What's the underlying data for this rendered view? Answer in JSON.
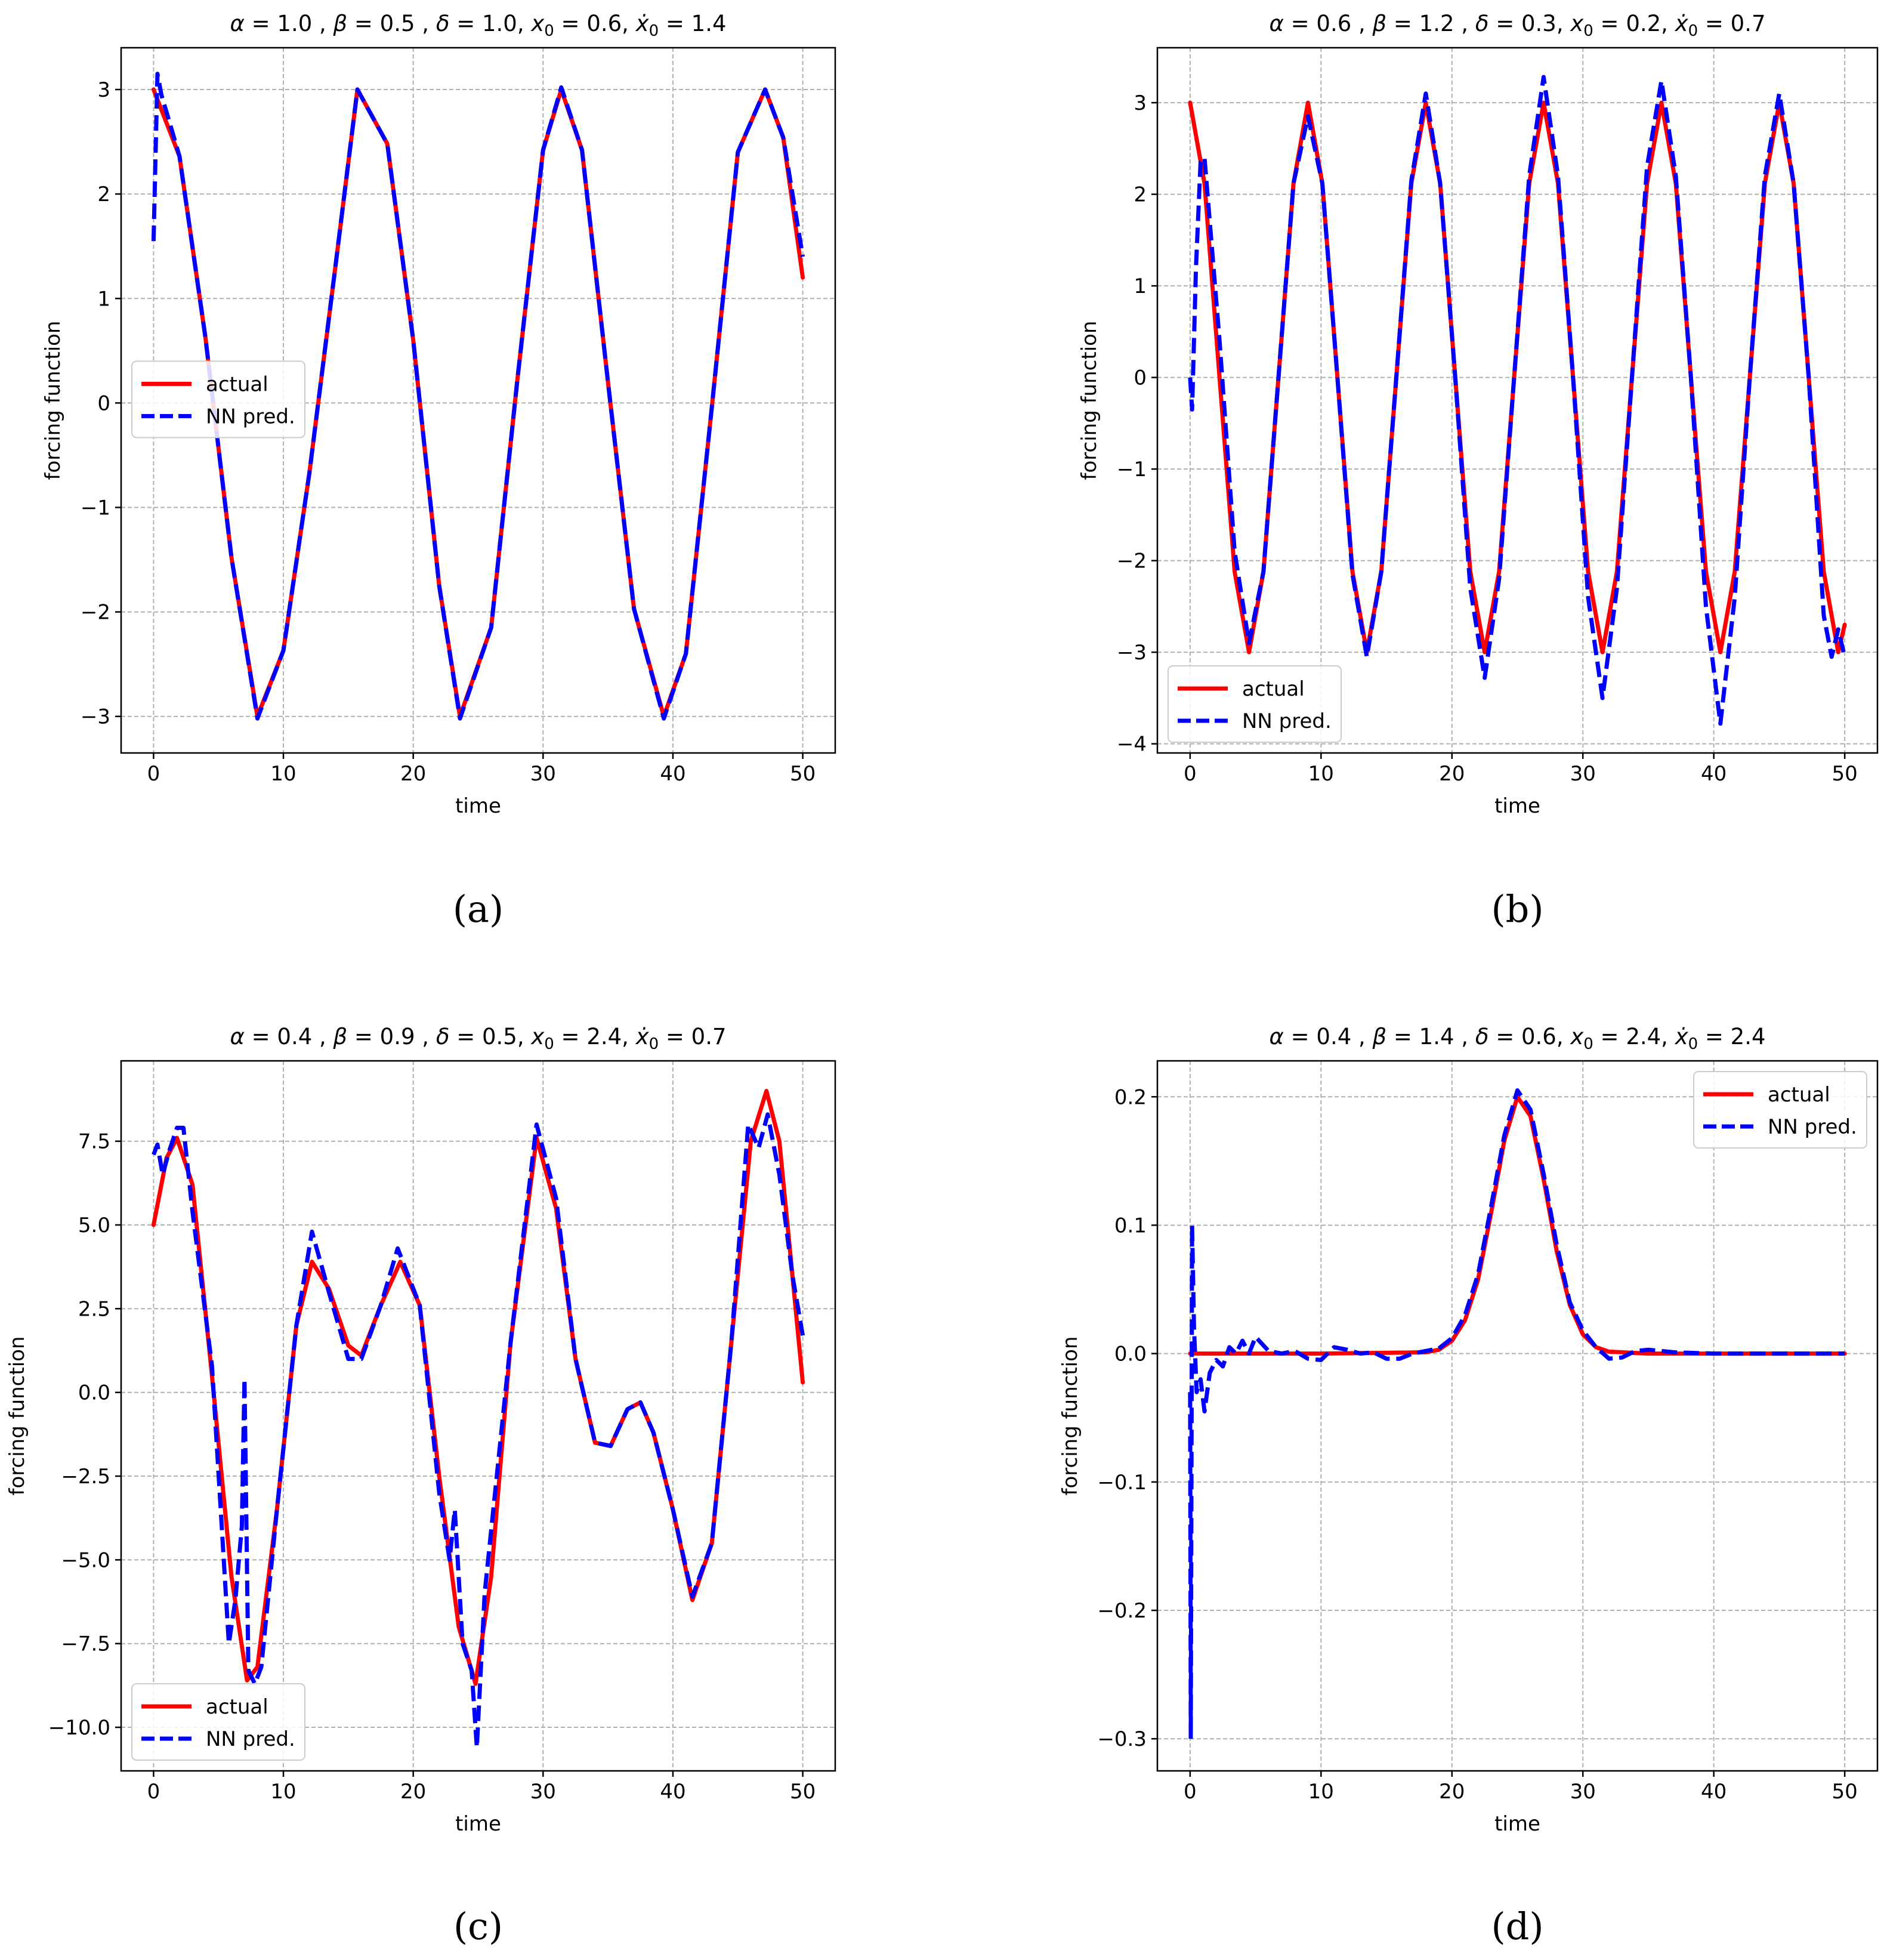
{
  "chart_data": [
    {
      "panel": "a",
      "caption": "(a)",
      "type": "line",
      "title": "α = 1.0 , β = 0.5 , δ = 1.0, x0 = 0.6, ẋ0 = 1.4",
      "params": {
        "alpha": "1.0",
        "beta": "0.5",
        "delta": "1.0",
        "x0": "0.6",
        "xdot0": "1.4"
      },
      "xlabel": "time",
      "ylabel": "forcing function",
      "xlim": [
        -2.5,
        52.5
      ],
      "ylim": [
        -3.35,
        3.4
      ],
      "xticks": [
        0,
        10,
        20,
        30,
        40,
        50
      ],
      "yticks": [
        -3,
        -2,
        -1,
        0,
        1,
        2,
        3
      ],
      "ytick_labels": [
        "−3",
        "−2",
        "−1",
        "0",
        "1",
        "2",
        "3"
      ],
      "grid": true,
      "legend_position": "center-left",
      "series": [
        {
          "name": "actual",
          "color": "#ff0000",
          "style": "solid",
          "x": [
            0,
            2,
            4,
            6,
            8,
            10,
            12,
            14,
            15.7,
            18,
            20,
            22,
            23.6,
            26,
            28,
            30,
            31.4,
            33,
            35,
            37,
            39.3,
            41,
            43,
            45,
            47.1,
            48.5,
            50
          ],
          "y": [
            3,
            2.36,
            0.62,
            -1.48,
            -3,
            -2.37,
            -0.67,
            1.3,
            3,
            2.48,
            0.6,
            -1.75,
            -3,
            -2.15,
            0.2,
            2.42,
            3,
            2.42,
            0.2,
            -1.97,
            -3,
            -2.4,
            -0.04,
            2.4,
            3,
            2.54,
            1.2
          ]
        },
        {
          "name": "NN pred.",
          "color": "#0000ff",
          "style": "dashed",
          "x": [
            0,
            0.3,
            0.6,
            1.2,
            2,
            4,
            6,
            8,
            10,
            12,
            14,
            15.7,
            18,
            20,
            22,
            23.6,
            26,
            28,
            30,
            31.4,
            33,
            35,
            37,
            39.3,
            41,
            43,
            45,
            47.1,
            48.5,
            50
          ],
          "y": [
            1.55,
            3.15,
            2.95,
            2.7,
            2.36,
            0.62,
            -1.48,
            -3.02,
            -2.37,
            -0.67,
            1.3,
            3,
            2.48,
            0.6,
            -1.75,
            -3.02,
            -2.15,
            0.2,
            2.42,
            3.02,
            2.42,
            0.2,
            -1.97,
            -3.02,
            -2.4,
            -0.04,
            2.4,
            3,
            2.54,
            1.4
          ]
        }
      ]
    },
    {
      "panel": "b",
      "caption": "(b)",
      "type": "line",
      "title": "α = 0.6 , β = 1.2 , δ = 0.3, x0 = 0.2, ẋ0 = 0.7",
      "params": {
        "alpha": "0.6",
        "beta": "1.2",
        "delta": "0.3",
        "x0": "0.2",
        "xdot0": "0.7"
      },
      "xlabel": "time",
      "ylabel": "forcing function",
      "xlim": [
        -2.5,
        52.5
      ],
      "ylim": [
        -4.1,
        3.6
      ],
      "xticks": [
        0,
        10,
        20,
        30,
        40,
        50
      ],
      "yticks": [
        -4,
        -3,
        -2,
        -1,
        0,
        1,
        2,
        3
      ],
      "ytick_labels": [
        "−4",
        "−3",
        "−2",
        "−1",
        "0",
        "1",
        "2",
        "3"
      ],
      "grid": true,
      "legend_position": "lower-left",
      "series": [
        {
          "name": "actual",
          "color": "#ff0000",
          "style": "solid",
          "x": [
            0,
            1.1,
            2.25,
            3.4,
            4.5,
            5.6,
            6.75,
            7.9,
            9.0,
            10.1,
            11.25,
            12.4,
            13.5,
            14.6,
            15.75,
            16.9,
            18.0,
            19.1,
            20.25,
            21.4,
            22.5,
            23.6,
            24.75,
            25.9,
            27.0,
            28.1,
            29.25,
            30.4,
            31.5,
            32.6,
            33.75,
            34.9,
            36.0,
            37.1,
            38.25,
            39.4,
            40.5,
            41.6,
            42.75,
            43.9,
            45.0,
            46.1,
            47.25,
            48.4,
            49.5,
            50
          ],
          "y": [
            3,
            2.12,
            0,
            -2.12,
            -3,
            -2.12,
            0,
            2.12,
            3,
            2.12,
            0,
            -2.12,
            -3,
            -2.12,
            0,
            2.12,
            3,
            2.12,
            0,
            -2.12,
            -3,
            -2.12,
            0,
            2.12,
            3,
            2.12,
            0,
            -2.12,
            -3,
            -2.12,
            0,
            2.12,
            3,
            2.12,
            0,
            -2.12,
            -3,
            -2.12,
            0,
            2.12,
            3,
            2.12,
            0,
            -2.12,
            -3,
            -2.7
          ]
        },
        {
          "name": "NN pred.",
          "color": "#0000ff",
          "style": "dashed",
          "x": [
            0,
            0.15,
            0.45,
            0.8,
            1.1,
            2.25,
            3.4,
            4.5,
            5.6,
            6.75,
            7.9,
            9.0,
            10.1,
            11.25,
            12.4,
            13.5,
            14.6,
            15.75,
            16.9,
            18.0,
            19.1,
            20.25,
            21.4,
            22.5,
            23.6,
            24.75,
            25.9,
            27.0,
            28.1,
            29.25,
            30.4,
            31.5,
            32.6,
            33.75,
            34.9,
            36.0,
            37.1,
            38.25,
            39.4,
            40.5,
            41.6,
            42.75,
            43.9,
            45.0,
            46.1,
            47.25,
            48.4,
            49.0,
            49.5,
            50
          ],
          "y": [
            0,
            -0.35,
            1.2,
            2.35,
            2.4,
            0.4,
            -1.9,
            -2.9,
            -2.12,
            0,
            2.12,
            2.85,
            2.12,
            0,
            -2.15,
            -3.05,
            -2.12,
            0,
            2.15,
            3.1,
            2.12,
            0,
            -2.3,
            -3.28,
            -2.2,
            0,
            2.2,
            3.28,
            2.2,
            0,
            -2.4,
            -3.5,
            -2.3,
            0,
            2.3,
            3.24,
            2.2,
            0,
            -2.5,
            -3.78,
            -2.4,
            0,
            2.2,
            3.1,
            2.12,
            0,
            -2.6,
            -3.05,
            -2.75,
            -3.05
          ]
        }
      ]
    },
    {
      "panel": "c",
      "caption": "(c)",
      "type": "line",
      "title": "α = 0.4 , β = 0.9 , δ = 0.5, x0 = 2.4, ẋ0 = 0.7",
      "params": {
        "alpha": "0.4",
        "beta": "0.9",
        "delta": "0.5",
        "x0": "2.4",
        "xdot0": "0.7"
      },
      "xlabel": "time",
      "ylabel": "forcing function",
      "xlim": [
        -2.5,
        52.5
      ],
      "ylim": [
        -11.3,
        9.9
      ],
      "xticks": [
        0,
        10,
        20,
        30,
        40,
        50
      ],
      "yticks": [
        -10,
        -7.5,
        -5,
        -2.5,
        0,
        2.5,
        5,
        7.5
      ],
      "ytick_labels": [
        "−10.0",
        "−7.5",
        "−5.0",
        "−2.5",
        "0.0",
        "2.5",
        "5.0",
        "7.5"
      ],
      "grid": true,
      "legend_position": "lower-left",
      "series": [
        {
          "name": "actual",
          "color": "#ff0000",
          "style": "solid",
          "x": [
            0,
            1,
            1.8,
            3,
            4.5,
            6,
            7.2,
            8,
            9.5,
            11,
            12.2,
            13.5,
            15,
            16,
            17.5,
            19,
            20.5,
            22,
            23.5,
            24.8,
            26,
            27.5,
            29.5,
            31,
            32.5,
            34,
            35.2,
            36.5,
            37.5,
            38.5,
            40,
            41.5,
            43,
            44.5,
            46,
            47.2,
            48.2,
            49.2,
            50
          ],
          "y": [
            5,
            7,
            7.6,
            6.2,
            0.5,
            -5.5,
            -8.6,
            -8.2,
            -3.5,
            2,
            3.9,
            3.1,
            1.4,
            1.1,
            2.6,
            3.9,
            2.6,
            -2.5,
            -7,
            -8.7,
            -5.5,
            1.5,
            7.6,
            5.5,
            1,
            -1.5,
            -1.6,
            -0.5,
            -0.3,
            -1.2,
            -3.5,
            -6.2,
            -4.5,
            1.5,
            7.5,
            9,
            7.5,
            3.5,
            0.3
          ]
        },
        {
          "name": "NN pred.",
          "color": "#0000ff",
          "style": "dashed",
          "x": [
            0,
            0.3,
            0.7,
            1.2,
            1.8,
            2.3,
            3,
            4.5,
            5.8,
            6.3,
            6.8,
            7.0,
            7.3,
            7.8,
            8.3,
            9.5,
            11,
            12.2,
            13.5,
            15,
            16,
            17.5,
            18.8,
            20.5,
            22,
            22.8,
            23.2,
            23.8,
            24.5,
            24.9,
            25.5,
            27.5,
            29.5,
            31,
            32.5,
            34,
            35.2,
            36.5,
            37.5,
            38.5,
            40,
            41.5,
            43,
            44.5,
            45.8,
            46.6,
            47.3,
            48.2,
            49.2,
            50
          ],
          "y": [
            7.1,
            7.4,
            6.5,
            7.2,
            7.9,
            7.9,
            5.4,
            0.8,
            -7.5,
            -6.2,
            -4,
            0.4,
            -8.3,
            -8.7,
            -8.2,
            -3.5,
            2,
            4.8,
            3,
            1,
            1,
            2.6,
            4.3,
            2.6,
            -3,
            -5,
            -3.5,
            -7.5,
            -8.3,
            -10.6,
            -6,
            1.5,
            8,
            5.8,
            1,
            -1.5,
            -1.6,
            -0.5,
            -0.3,
            -1.2,
            -3.5,
            -6.1,
            -4.5,
            1.5,
            8,
            7.3,
            8.3,
            6.5,
            3.5,
            1.7
          ]
        }
      ]
    },
    {
      "panel": "d",
      "caption": "(d)",
      "type": "line",
      "title": "α = 0.4 , β = 1.4 , δ = 0.6, x0 = 2.4, ẋ0 = 2.4",
      "params": {
        "alpha": "0.4",
        "beta": "1.4",
        "delta": "0.6",
        "x0": "2.4",
        "xdot0": "2.4"
      },
      "xlabel": "time",
      "ylabel": "forcing function",
      "xlim": [
        -2.5,
        52.5
      ],
      "ylim": [
        -0.325,
        0.228
      ],
      "xticks": [
        0,
        10,
        20,
        30,
        40,
        50
      ],
      "yticks": [
        -0.3,
        -0.2,
        -0.1,
        0.0,
        0.1,
        0.2
      ],
      "ytick_labels": [
        "−0.3",
        "−0.2",
        "−0.1",
        "0.0",
        "0.1",
        "0.2"
      ],
      "grid": true,
      "legend_position": "upper-right",
      "series": [
        {
          "name": "actual",
          "color": "#ff0000",
          "style": "solid",
          "x": [
            0,
            10,
            18,
            19,
            20,
            21,
            22,
            23,
            24,
            25,
            26,
            27,
            28,
            29,
            30,
            31,
            32,
            35,
            50
          ],
          "y": [
            0,
            0,
            0.001,
            0.003,
            0.01,
            0.026,
            0.058,
            0.11,
            0.166,
            0.2,
            0.185,
            0.136,
            0.08,
            0.038,
            0.015,
            0.005,
            0.0015,
            0,
            0
          ]
        },
        {
          "name": "NN pred.",
          "color": "#0000ff",
          "style": "dashed",
          "x": [
            0,
            0.05,
            0.15,
            0.3,
            0.5,
            0.8,
            1.1,
            1.5,
            2,
            2.5,
            3,
            3.5,
            4,
            4.5,
            5,
            6,
            7,
            8,
            9,
            10,
            11,
            12,
            13,
            14,
            15,
            16,
            17,
            18,
            19,
            20,
            21,
            22,
            23,
            24,
            25,
            26,
            27,
            28,
            29,
            30,
            31,
            32,
            33,
            34,
            35,
            37,
            40,
            45,
            50
          ],
          "y": [
            -0.03,
            -0.3,
            0.1,
            0.02,
            -0.03,
            -0.02,
            -0.045,
            -0.015,
            -0.005,
            -0.01,
            0.005,
            0,
            0.01,
            0,
            0.013,
            0.002,
            0,
            0.002,
            -0.004,
            -0.005,
            0.005,
            0.003,
            0,
            0.001,
            -0.004,
            -0.004,
            0,
            0.002,
            0.004,
            0.012,
            0.03,
            0.062,
            0.115,
            0.17,
            0.205,
            0.19,
            0.14,
            0.085,
            0.04,
            0.018,
            0.005,
            -0.004,
            -0.003,
            0.002,
            0.003,
            0.001,
            0,
            0,
            0
          ]
        }
      ]
    }
  ]
}
